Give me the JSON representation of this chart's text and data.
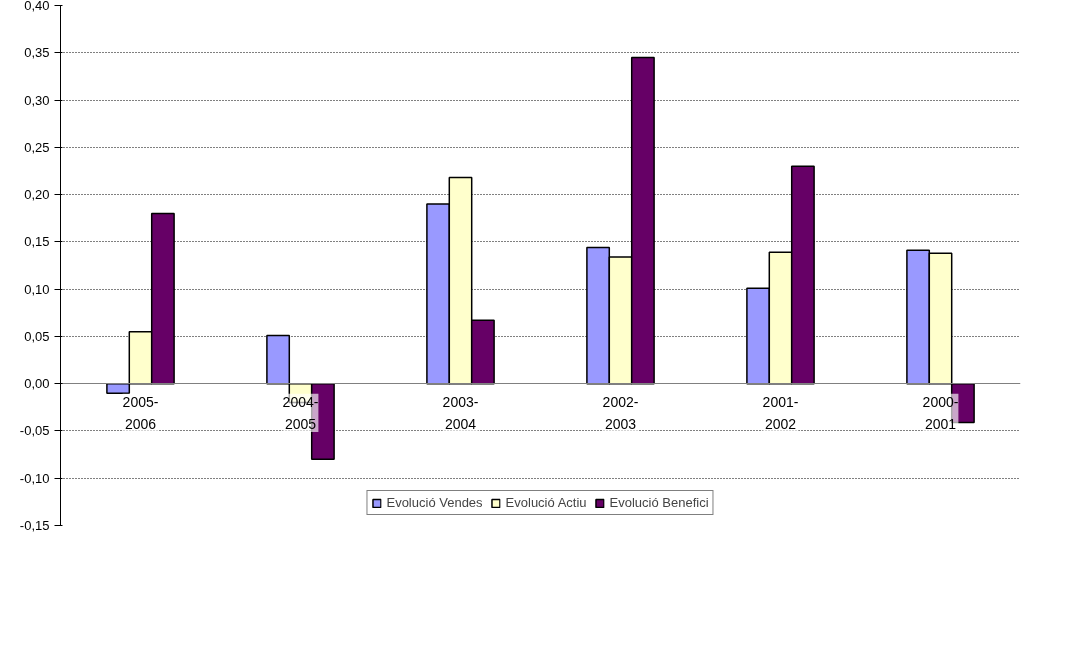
{
  "chart_data": {
    "type": "bar",
    "categories": [
      "2005-2006",
      "2004-2005",
      "2003-2004",
      "2002-2003",
      "2001-2002",
      "2000-2001"
    ],
    "series": [
      {
        "name": "Evolució Vendes",
        "color": "#9999ff",
        "values": [
          -0.01,
          0.051,
          0.19,
          0.144,
          0.101,
          0.141
        ]
      },
      {
        "name": "Evolució Actiu",
        "color": "#ffffcc",
        "values": [
          0.055,
          -0.02,
          0.218,
          0.134,
          0.139,
          0.138
        ]
      },
      {
        "name": "Evolució Benefici",
        "color": "#660066",
        "values": [
          0.18,
          -0.08,
          0.067,
          0.345,
          0.23,
          -0.041
        ]
      }
    ],
    "ylim": [
      -0.15,
      0.4
    ],
    "yticks": [
      {
        "value": -0.15,
        "label": "-0,15"
      },
      {
        "value": -0.1,
        "label": "-0,10"
      },
      {
        "value": -0.05,
        "label": "-0,05"
      },
      {
        "value": 0,
        "label": "0,00"
      },
      {
        "value": 0.05,
        "label": "0,05"
      },
      {
        "value": 0.1,
        "label": "0,10"
      },
      {
        "value": 0.15,
        "label": "0,15"
      },
      {
        "value": 0.2,
        "label": "0,20"
      },
      {
        "value": 0.25,
        "label": "0,25"
      },
      {
        "value": 0.3,
        "label": "0,30"
      },
      {
        "value": 0.35,
        "label": "0,35"
      },
      {
        "value": 0.4,
        "label": "0,40"
      }
    ],
    "grid": "y",
    "legend": "bottom"
  }
}
